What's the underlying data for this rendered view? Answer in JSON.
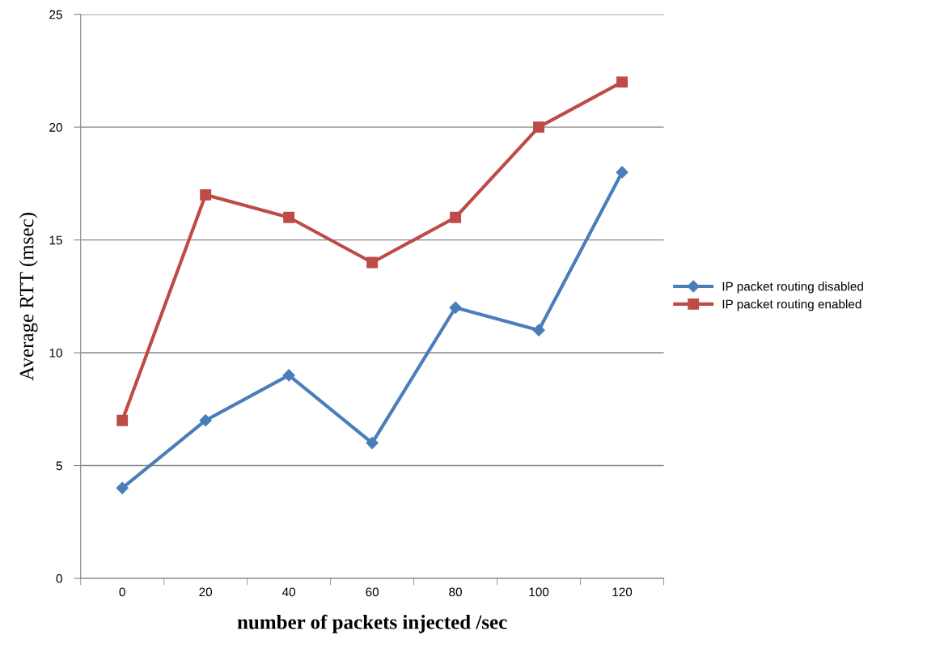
{
  "chart_data": {
    "type": "line",
    "xlabel": "number of packets injected /sec",
    "ylabel": "Average RTT (msec)",
    "categories": [
      "0",
      "20",
      "40",
      "60",
      "80",
      "100",
      "120"
    ],
    "series": [
      {
        "name": "IP packet routing disabled",
        "color": "#4a7ebb",
        "marker": "diamond",
        "values": [
          4,
          7,
          9,
          6,
          12,
          11,
          18
        ]
      },
      {
        "name": "IP packet routing enabled",
        "color": "#be4b48",
        "marker": "square",
        "values": [
          7,
          17,
          16,
          14,
          16,
          20,
          22
        ]
      }
    ],
    "ylim": [
      0,
      25
    ],
    "yticks": [
      0,
      5,
      10,
      15,
      20,
      25
    ],
    "grid": "y",
    "legend": "right",
    "line_style": "solid"
  }
}
